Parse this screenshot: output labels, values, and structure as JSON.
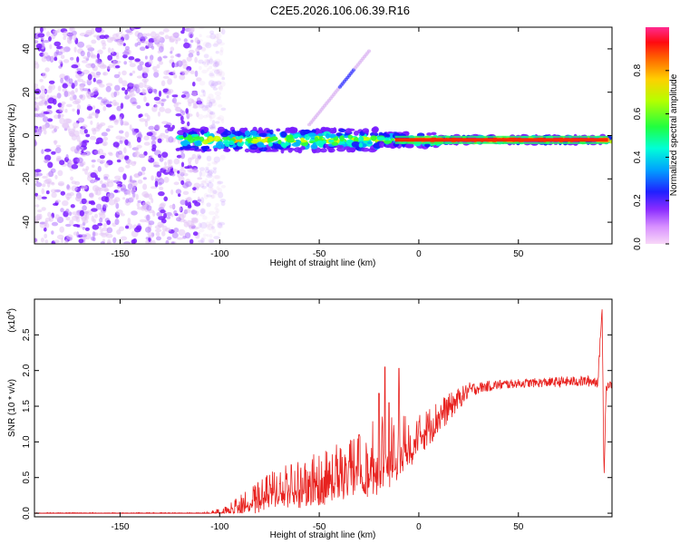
{
  "title": "C2E5.2026.106.06.39.R16",
  "colors": {
    "background": "#ffffff",
    "snr_line": "#e8221f",
    "baseline": "#d6252a",
    "colormap": [
      "#f2c6f2",
      "#d08cff",
      "#7a1cff",
      "#1616ff",
      "#00b4ff",
      "#00ffc8",
      "#32ff32",
      "#d2ff00",
      "#ffb400",
      "#ff3c00",
      "#ff0000"
    ]
  },
  "chart_data": [
    {
      "type": "heatmap",
      "name": "spectrogram",
      "xlabel": "Height of straight line (km)",
      "ylabel": "Frequency (Hz)",
      "xlim": [
        -193,
        97
      ],
      "ylim": [
        -50,
        50
      ],
      "xticks": [
        -150,
        -100,
        -50,
        0,
        50
      ],
      "xtick_labels": [
        "-150",
        "-100",
        "-50",
        "0",
        "50"
      ],
      "yticks": [
        -40,
        -20,
        0,
        20,
        40
      ],
      "ytick_labels": [
        "-40",
        "-20",
        "0",
        "20",
        "40"
      ],
      "ridge_frequency": -2,
      "noise_region_x": [
        -193,
        -110
      ],
      "colorbar": {
        "label": "Normalized spectral amplitude",
        "range": [
          0.0,
          1.0
        ],
        "ticks": [
          0.0,
          0.2,
          0.4,
          0.6,
          0.8
        ],
        "tick_labels": [
          "0.0",
          "0.2",
          "0.4",
          "0.6",
          "0.8"
        ]
      }
    },
    {
      "type": "line",
      "name": "snr",
      "xlabel": "Height of straight line (km)",
      "ylabel": "SNR (10 * v/v)",
      "scale_note": "(x10",
      "scale_exp": "4",
      "scale_close": ")",
      "xlim": [
        -193,
        97
      ],
      "ylim": [
        -0.05,
        3.0
      ],
      "xticks": [
        -150,
        -100,
        -50,
        0,
        50
      ],
      "xtick_labels": [
        "-150",
        "-100",
        "-50",
        "0",
        "50"
      ],
      "yticks": [
        0.0,
        0.5,
        1.0,
        1.5,
        2.0,
        2.5
      ],
      "ytick_labels": [
        "0.0",
        "0.5",
        "1.0",
        "1.5",
        "2.0",
        "2.5"
      ],
      "trend": {
        "x": [
          -193,
          -110,
          -100,
          -90,
          -80,
          -70,
          -60,
          -50,
          -40,
          -30,
          -20,
          -10,
          0,
          10,
          20,
          25,
          30,
          40,
          50,
          60,
          70,
          80,
          90,
          92,
          93,
          94,
          95,
          97
        ],
        "y": [
          0.0,
          0.0,
          0.02,
          0.12,
          0.22,
          0.35,
          0.38,
          0.48,
          0.6,
          0.7,
          0.8,
          0.95,
          1.08,
          1.35,
          1.6,
          1.72,
          1.76,
          1.8,
          1.82,
          1.83,
          1.84,
          1.85,
          1.85,
          2.9,
          0.5,
          1.75,
          1.8,
          1.8
        ]
      },
      "noise_amplitude": {
        "x": [
          -193,
          -110,
          -100,
          -80,
          -60,
          -40,
          -20,
          -10,
          0,
          10,
          20,
          30,
          50,
          90,
          97
        ],
        "y": [
          0.01,
          0.01,
          0.05,
          0.25,
          0.35,
          0.42,
          0.55,
          0.5,
          0.3,
          0.25,
          0.15,
          0.08,
          0.06,
          0.08,
          0.05
        ]
      },
      "spikes": [
        {
          "x": -17,
          "y": 2.05
        },
        {
          "x": -10,
          "y": 2.03
        },
        {
          "x": -20,
          "y": 1.68
        },
        {
          "x": -15,
          "y": 1.55
        },
        {
          "x": -64,
          "y": 0.68
        },
        {
          "x": -30,
          "y": 1.1
        }
      ]
    }
  ]
}
